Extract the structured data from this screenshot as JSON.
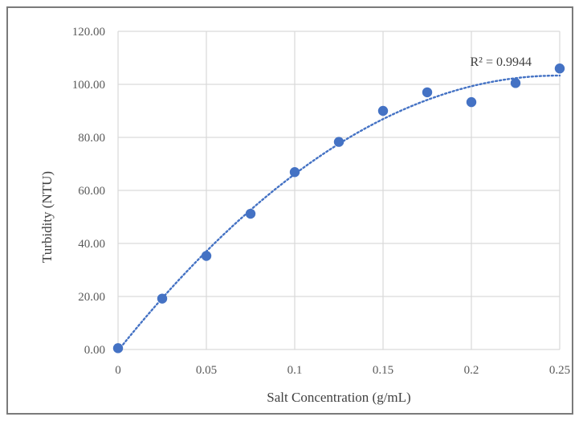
{
  "chart_data": {
    "type": "scatter",
    "xlabel": "Salt Concentration (g/mL)",
    "ylabel": "Turbidity (NTU)",
    "xlim": [
      0,
      0.25
    ],
    "ylim": [
      0,
      120
    ],
    "x_ticks": [
      "0",
      "0.05",
      "0.1",
      "0.15",
      "0.2",
      "0.25"
    ],
    "x_tick_values": [
      0,
      0.05,
      0.1,
      0.15,
      0.2,
      0.25
    ],
    "y_ticks": [
      "0.00",
      "20.00",
      "40.00",
      "60.00",
      "80.00",
      "100.00",
      "120.00"
    ],
    "y_tick_values": [
      0,
      20,
      40,
      60,
      80,
      100,
      120
    ],
    "grid": true,
    "legend": "none",
    "point_color": "#4472c4",
    "trendline": {
      "type": "polynomial",
      "style": "dotted",
      "color": "#4472c4",
      "r_squared_label": "R² = 0.9944"
    },
    "points": [
      {
        "x": 0,
        "y": 0.5
      },
      {
        "x": 0.025,
        "y": 19.2
      },
      {
        "x": 0.05,
        "y": 35.3
      },
      {
        "x": 0.075,
        "y": 51.2
      },
      {
        "x": 0.1,
        "y": 66.9
      },
      {
        "x": 0.125,
        "y": 78.3
      },
      {
        "x": 0.15,
        "y": 90.0
      },
      {
        "x": 0.175,
        "y": 97.0
      },
      {
        "x": 0.2,
        "y": 93.3
      },
      {
        "x": 0.225,
        "y": 100.5
      },
      {
        "x": 0.25,
        "y": 106.0
      }
    ]
  }
}
